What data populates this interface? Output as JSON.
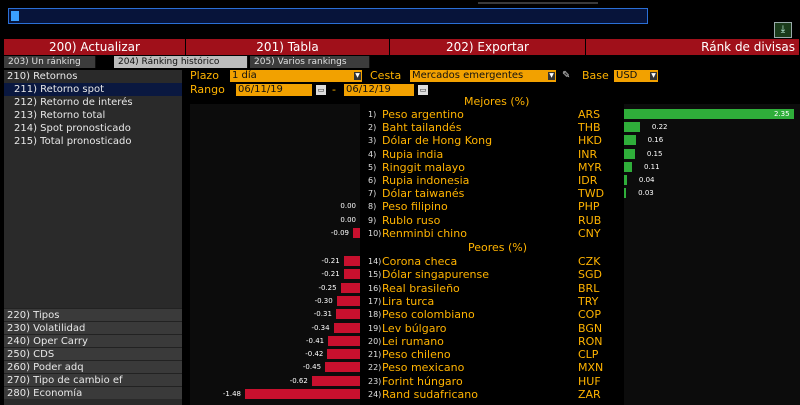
{
  "toolbar": {
    "buttons": [
      {
        "label": "200) Actualizar"
      },
      {
        "label": "201) Tabla"
      },
      {
        "label": "202) Exportar"
      },
      {
        "label": "Ránk de divisas"
      }
    ]
  },
  "tabs": [
    {
      "label": "203) Un ránking"
    },
    {
      "label": "204) Ránking histórico"
    },
    {
      "label": "205) Varios rankings"
    }
  ],
  "sidebar": {
    "top_items": [
      {
        "label": "210) Retornos"
      },
      {
        "label": "211) Retorno spot"
      },
      {
        "label": "212) Retorno de interés"
      },
      {
        "label": "213) Retorno total"
      },
      {
        "label": "214) Spot pronosticado"
      },
      {
        "label": "215) Total pronosticado"
      }
    ],
    "bottom_items": [
      {
        "label": "220) Tipos"
      },
      {
        "label": "230) Volatilidad"
      },
      {
        "label": "240) Oper Carry"
      },
      {
        "label": "250) CDS"
      },
      {
        "label": "260) Poder adq"
      },
      {
        "label": "270) Tipo de cambio ef"
      },
      {
        "label": "280) Economía"
      }
    ]
  },
  "params": {
    "plazo_label": "Plazo",
    "plazo_value": "1 día",
    "cesta_label": "Cesta",
    "cesta_value": "Mercados emergentes",
    "base_label": "Base",
    "base_value": "USD",
    "rango_label": "Rango",
    "start_date": "06/11/19",
    "end_date": "06/12/19",
    "dash": "-"
  },
  "sections": {
    "best_title": "Mejores (%)",
    "worst_title": "Peores (%)"
  },
  "best": [
    {
      "rank": "1)",
      "name": "Peso argentino",
      "code": "ARS",
      "value": 2.35,
      "label": "2.35"
    },
    {
      "rank": "2)",
      "name": "Baht tailandés",
      "code": "THB",
      "value": 0.22,
      "label": "0.22"
    },
    {
      "rank": "3)",
      "name": "Dólar de Hong Kong",
      "code": "HKD",
      "value": 0.16,
      "label": "0.16"
    },
    {
      "rank": "4)",
      "name": "Rupia india",
      "code": "INR",
      "value": 0.15,
      "label": "0.15"
    },
    {
      "rank": "5)",
      "name": "Ringgit malayo",
      "code": "MYR",
      "value": 0.11,
      "label": "0.11"
    },
    {
      "rank": "6)",
      "name": "Rupia indonesia",
      "code": "IDR",
      "value": 0.04,
      "label": "0.04"
    },
    {
      "rank": "7)",
      "name": "Dólar taiwanés",
      "code": "TWD",
      "value": 0.03,
      "label": "0.03"
    },
    {
      "rank": "8)",
      "name": "Peso filipino",
      "code": "PHP",
      "value": 0.0,
      "label": "0.00"
    },
    {
      "rank": "9)",
      "name": "Rublo ruso",
      "code": "RUB",
      "value": 0.0,
      "label": "0.00"
    },
    {
      "rank": "10)",
      "name": "Renminbi chino",
      "code": "CNY",
      "value": -0.09,
      "label": "-0.09"
    }
  ],
  "worst": [
    {
      "rank": "14)",
      "name": "Corona checa",
      "code": "CZK",
      "value": -0.21,
      "label": "-0.21"
    },
    {
      "rank": "15)",
      "name": "Dólar singapurense",
      "code": "SGD",
      "value": -0.21,
      "label": "-0.21"
    },
    {
      "rank": "16)",
      "name": "Real brasileño",
      "code": "BRL",
      "value": -0.25,
      "label": "-0.25"
    },
    {
      "rank": "17)",
      "name": "Lira turca",
      "code": "TRY",
      "value": -0.3,
      "label": "-0.30"
    },
    {
      "rank": "18)",
      "name": "Peso colombiano",
      "code": "COP",
      "value": -0.31,
      "label": "-0.31"
    },
    {
      "rank": "19)",
      "name": "Lev búlgaro",
      "code": "BGN",
      "value": -0.34,
      "label": "-0.34"
    },
    {
      "rank": "20)",
      "name": "Lei rumano",
      "code": "RON",
      "value": -0.41,
      "label": "-0.41"
    },
    {
      "rank": "21)",
      "name": "Peso chileno",
      "code": "CLP",
      "value": -0.42,
      "label": "-0.42"
    },
    {
      "rank": "22)",
      "name": "Peso mexicano",
      "code": "MXN",
      "value": -0.45,
      "label": "-0.45"
    },
    {
      "rank": "23)",
      "name": "Forint húngaro",
      "code": "HUF",
      "value": -0.62,
      "label": "-0.62"
    },
    {
      "rank": "24)",
      "name": "Rand sudafricano",
      "code": "ZAR",
      "value": -1.48,
      "label": "-1.48"
    }
  ],
  "colors": {
    "positive": "#2fae3a",
    "negative": "#c8102e",
    "accent": "#ffb300",
    "toolbar": "#a0101a"
  }
}
